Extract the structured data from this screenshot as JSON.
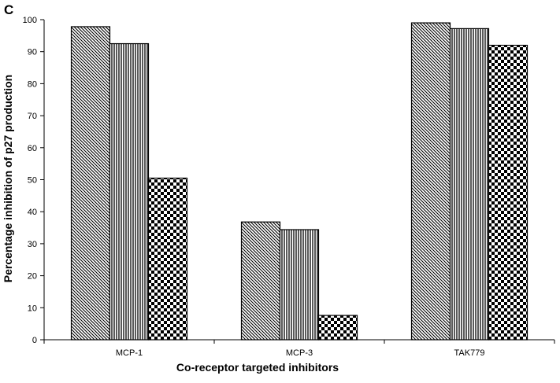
{
  "panel_label": "C",
  "chart_data": {
    "type": "bar",
    "categories": [
      "MCP-1",
      "MCP-3",
      "TAK779"
    ],
    "series": [
      {
        "pattern": "diagonal-hatch",
        "values": [
          97.8,
          36.8,
          99.0
        ]
      },
      {
        "pattern": "vertical-lines",
        "values": [
          92.5,
          34.4,
          97.2
        ]
      },
      {
        "pattern": "checkerboard",
        "values": [
          50.5,
          7.6,
          92.0
        ]
      }
    ],
    "xlabel": "Co-receptor targeted inhibitors",
    "ylabel": "Percentage inhibition of p27 production",
    "ylim": [
      0,
      100
    ],
    "yticks": [
      0,
      10,
      20,
      30,
      40,
      50,
      60,
      70,
      80,
      90,
      100
    ],
    "grid": false,
    "legend": "none",
    "colors": {
      "bar_stroke": "#000000",
      "pattern_ink": "#000000",
      "background": "#ffffff"
    }
  }
}
